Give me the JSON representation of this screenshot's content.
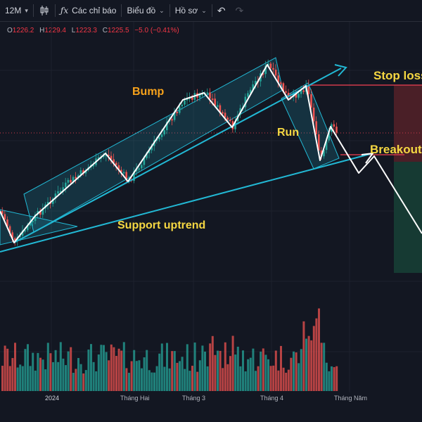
{
  "toolbar": {
    "interval": "12M",
    "indicators": "Các chỉ báo",
    "chart_type": "Biểu đồ",
    "profile": "Hồ sơ"
  },
  "ohlc": {
    "open_label": "O",
    "open": "1226.2",
    "high_label": "H",
    "high": "1229.4",
    "low_label": "L",
    "low": "1223.3",
    "close_label": "C",
    "close": "1225.5",
    "change": "−5.0 (−0.41%)"
  },
  "annotations": {
    "bump": "Bump",
    "run": "Run",
    "support": "Support uptrend",
    "stop_loss": "Stop loss",
    "breakout": "Breakout"
  },
  "xaxis": {
    "labels": [
      "2024",
      "Tháng Hai",
      "Tháng 3",
      "Tháng 4",
      "Tháng Năm"
    ]
  },
  "colors": {
    "background": "#131722",
    "up": "#26a69a",
    "down": "#ef5350",
    "channel": "#22b8d4",
    "bump_label": "#f7a21b",
    "label_yellow": "#f5d742",
    "stop_zone": "#4a1f27",
    "target_zone": "#163a33"
  }
}
